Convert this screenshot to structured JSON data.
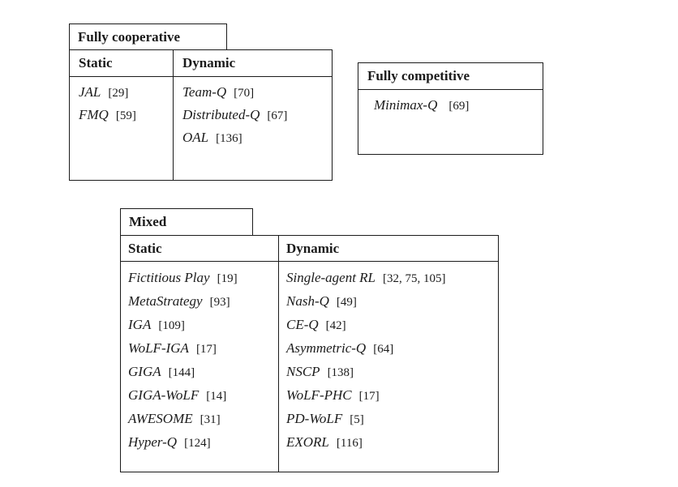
{
  "colors": {
    "background": "#ffffff",
    "border": "#1b1b1b",
    "text": "#1b1b1b"
  },
  "cooperative": {
    "title": "Fully cooperative",
    "static_header": "Static",
    "dynamic_header": "Dynamic",
    "static_items": [
      {
        "name": "JAL",
        "ref": "[29]"
      },
      {
        "name": "FMQ",
        "ref": "[59]"
      }
    ],
    "dynamic_items": [
      {
        "name": "Team-Q",
        "ref": "[70]"
      },
      {
        "name": "Distributed-Q",
        "ref": "[67]"
      },
      {
        "name": "OAL",
        "ref": "[136]"
      }
    ]
  },
  "competitive": {
    "title": "Fully competitive",
    "items": [
      {
        "name": "Minimax-Q",
        "ref": "[69]"
      }
    ]
  },
  "mixed": {
    "title": "Mixed",
    "static_header": "Static",
    "dynamic_header": "Dynamic",
    "static_items": [
      {
        "name": "Fictitious Play",
        "ref": "[19]"
      },
      {
        "name": "MetaStrategy",
        "ref": "[93]"
      },
      {
        "name": "IGA",
        "ref": "[109]"
      },
      {
        "name": "WoLF-IGA",
        "ref": "[17]"
      },
      {
        "name": "GIGA",
        "ref": "[144]"
      },
      {
        "name": "GIGA-WoLF",
        "ref": "[14]"
      },
      {
        "name": "AWESOME",
        "ref": "[31]"
      },
      {
        "name": "Hyper-Q",
        "ref": "[124]"
      }
    ],
    "dynamic_items": [
      {
        "name": "Single-agent RL",
        "ref": "[32, 75, 105]"
      },
      {
        "name": "Nash-Q",
        "ref": "[49]"
      },
      {
        "name": "CE-Q",
        "ref": "[42]"
      },
      {
        "name": "Asymmetric-Q",
        "ref": "[64]"
      },
      {
        "name": "NSCP",
        "ref": "[138]"
      },
      {
        "name": "WoLF-PHC",
        "ref": "[17]"
      },
      {
        "name": "PD-WoLF",
        "ref": "[5]"
      },
      {
        "name": "EXORL",
        "ref": "[116]"
      }
    ]
  }
}
